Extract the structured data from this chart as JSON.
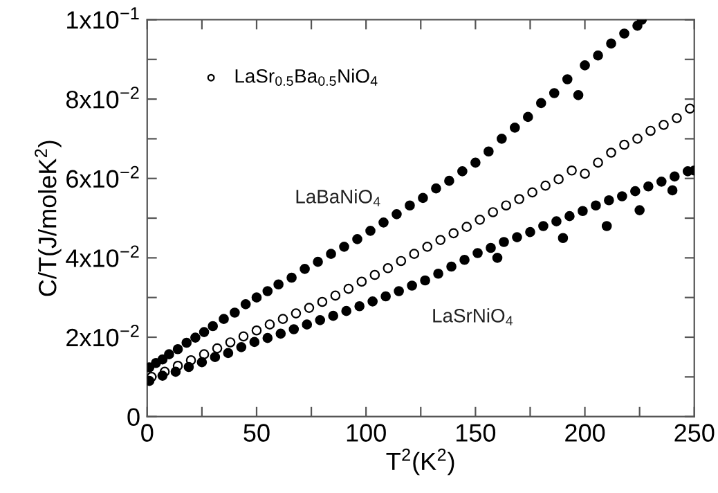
{
  "chart_data": {
    "type": "scatter",
    "xlabel": "T$^{2}$(K$^{2}$)",
    "ylabel": "C/T(J/moleK$^{2}$)",
    "xlim": [
      0,
      250
    ],
    "ylim": [
      0,
      0.1
    ],
    "xticks": [
      0,
      {
        "value": 25,
        "label": null
      },
      50,
      {
        "value": 75,
        "label": null
      },
      100,
      {
        "value": 125,
        "label": null
      },
      150,
      {
        "value": 175,
        "label": null
      },
      200,
      {
        "value": 225,
        "label": null
      },
      250
    ],
    "yticks": [
      {
        "value": 0,
        "label": "0"
      },
      {
        "value": 0.01,
        "label": null
      },
      {
        "value": 0.02,
        "label": "2x10$^{−2}$"
      },
      {
        "value": 0.03,
        "label": null
      },
      {
        "value": 0.04,
        "label": "4x10$^{−2}$"
      },
      {
        "value": 0.05,
        "label": null
      },
      {
        "value": 0.06,
        "label": "6x10$^{−2}$"
      },
      {
        "value": 0.07,
        "label": null
      },
      {
        "value": 0.08,
        "label": "8x10$^{−2}$"
      },
      {
        "value": 0.09,
        "label": null
      },
      {
        "value": 0.1,
        "label": "1x10$^{−1}$"
      }
    ],
    "grid": false,
    "legend": "top left",
    "marker": "circle",
    "annotations": [
      "LaBaNiO$_{4}$",
      "LaSrNiO$_{4}$"
    ],
    "series": [
      {
        "color": "#000000",
        "x": [
          1,
          4,
          7,
          10,
          14,
          18,
          22,
          26,
          30,
          35,
          40,
          45,
          50,
          55,
          60,
          66,
          72,
          78,
          84,
          90,
          96,
          102,
          108,
          114,
          120,
          126,
          132,
          138,
          144,
          150,
          156,
          162,
          168,
          174,
          180,
          186,
          192,
          197,
          200,
          206,
          212,
          218,
          224,
          226
        ],
        "values": [
          0.0124,
          0.0135,
          0.0144,
          0.0157,
          0.017,
          0.0186,
          0.0199,
          0.0213,
          0.0228,
          0.0246,
          0.0262,
          0.0283,
          0.03,
          0.0316,
          0.0333,
          0.035,
          0.0372,
          0.039,
          0.041,
          0.0428,
          0.0447,
          0.0468,
          0.0489,
          0.051,
          0.0532,
          0.0551,
          0.0575,
          0.0594,
          0.0618,
          0.064,
          0.0668,
          0.07,
          0.0728,
          0.0755,
          0.079,
          0.0815,
          0.085,
          0.081,
          0.0885,
          0.091,
          0.094,
          0.0965,
          0.0985,
          0.1
        ]
      },
      {
        "name": "LaSr$_{0.5}$Ba$_{0.5}$NiO$_{4}$",
        "color": "#ffffff",
        "x": [
          2,
          8,
          14,
          20,
          26,
          32,
          38,
          44,
          50,
          56,
          62,
          68,
          74,
          80,
          86,
          92,
          98,
          104,
          110,
          116,
          122,
          128,
          134,
          140,
          146,
          152,
          158,
          164,
          170,
          176,
          182,
          188,
          194,
          200,
          206,
          212,
          218,
          224,
          230,
          236,
          242,
          248
        ],
        "values": [
          0.01,
          0.0113,
          0.0128,
          0.0142,
          0.0157,
          0.0172,
          0.0187,
          0.0202,
          0.0217,
          0.0232,
          0.0246,
          0.026,
          0.0274,
          0.0289,
          0.0305,
          0.0322,
          0.034,
          0.0357,
          0.0374,
          0.0392,
          0.041,
          0.0428,
          0.0445,
          0.0462,
          0.0478,
          0.0496,
          0.0515,
          0.0532,
          0.0548,
          0.0565,
          0.0582,
          0.0598,
          0.062,
          0.0612,
          0.064,
          0.0665,
          0.0685,
          0.07,
          0.072,
          0.0735,
          0.0752,
          0.0776
        ]
      },
      {
        "color": "#000000",
        "x": [
          1,
          7,
          13,
          19,
          25,
          31,
          37,
          43,
          49,
          55,
          61,
          67,
          73,
          79,
          85,
          91,
          97,
          103,
          109,
          115,
          121,
          127,
          133,
          139,
          145,
          151,
          157,
          160,
          163,
          169,
          175,
          181,
          187,
          190,
          193,
          199,
          205,
          210,
          211,
          217,
          223,
          225,
          229,
          235,
          240,
          241,
          247,
          250
        ],
        "values": [
          0.009,
          0.0103,
          0.0113,
          0.0125,
          0.0137,
          0.015,
          0.016,
          0.0175,
          0.0188,
          0.0198,
          0.0209,
          0.022,
          0.0232,
          0.0243,
          0.0254,
          0.0266,
          0.0278,
          0.029,
          0.0303,
          0.0316,
          0.033,
          0.0343,
          0.036,
          0.0378,
          0.0395,
          0.0412,
          0.0425,
          0.04,
          0.044,
          0.0452,
          0.0465,
          0.048,
          0.0492,
          0.045,
          0.0505,
          0.0518,
          0.0532,
          0.048,
          0.0545,
          0.0555,
          0.0568,
          0.052,
          0.058,
          0.0592,
          0.057,
          0.0605,
          0.0618,
          0.062
        ]
      }
    ]
  }
}
